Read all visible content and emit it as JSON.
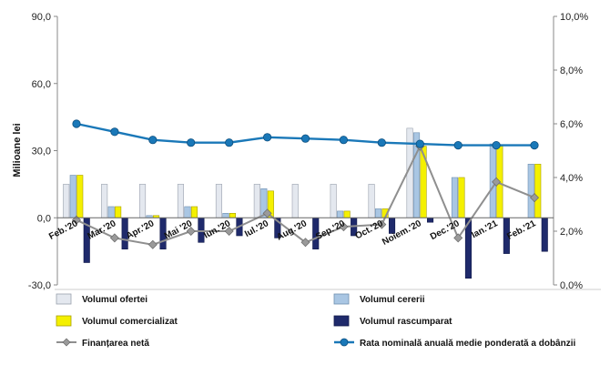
{
  "chart_data": {
    "type": "bar",
    "categories": [
      "Feb.'20",
      "Mar.'20",
      "Apr.'20",
      "Mai '20",
      "Iun.'20",
      "Iul.'20",
      "Aug.'20",
      "Sep.'20",
      "Oct.'20",
      "Noiem.'20",
      "Dec.'20",
      "Ian.'21",
      "Feb.'21"
    ],
    "ylabel": "Milioane lei",
    "ylim": [
      -30,
      90
    ],
    "y_ticks": [
      "-30,0",
      "0,0",
      "30,0",
      "60,0",
      "90,0"
    ],
    "y2lim": [
      0,
      10
    ],
    "y2_ticks": [
      "0,0%",
      "2,0%",
      "4,0%",
      "6,0%",
      "8,0%",
      "10,0%"
    ],
    "grid": false,
    "legend_position": "bottom",
    "series": [
      {
        "name": "Volumul ofertei",
        "kind": "bar",
        "axis": "left",
        "color": "#e4e8ef",
        "values": [
          15,
          15,
          15,
          15,
          15,
          15,
          15,
          15,
          15,
          40,
          0,
          0,
          0
        ]
      },
      {
        "name": "Volumul cererii",
        "kind": "bar",
        "axis": "left",
        "color": "#a9c6e3",
        "values": [
          19,
          5,
          1,
          5,
          2,
          13,
          0,
          3,
          4,
          38,
          18,
          33,
          24
        ]
      },
      {
        "name": "Volumul comercializat",
        "kind": "bar",
        "axis": "left",
        "color": "#f4f000",
        "values": [
          19,
          5,
          1,
          5,
          2,
          12,
          0,
          3,
          4,
          32,
          18,
          32,
          24
        ]
      },
      {
        "name": "Volumul rascumparat",
        "kind": "bar",
        "axis": "left",
        "color": "#1f2a6b",
        "values": [
          -20,
          -14,
          -14,
          -11,
          -8,
          -9,
          -14,
          -8,
          -7,
          -2,
          -27,
          -16,
          -15
        ]
      },
      {
        "name": "Finanțarea netă",
        "kind": "line",
        "axis": "left",
        "color": "#8f8f8f",
        "values": [
          -1,
          -9,
          -12,
          -6,
          -6,
          2,
          -11,
          -4,
          -3,
          32,
          -9,
          16,
          9
        ]
      },
      {
        "name": "Rata nominală anuală medie ponderată a dobânzii",
        "kind": "line",
        "axis": "right",
        "color": "#1a78b8",
        "values": [
          6.0,
          5.7,
          5.4,
          5.3,
          5.3,
          5.5,
          5.45,
          5.4,
          5.3,
          5.25,
          5.2,
          5.2,
          5.2
        ]
      }
    ]
  }
}
